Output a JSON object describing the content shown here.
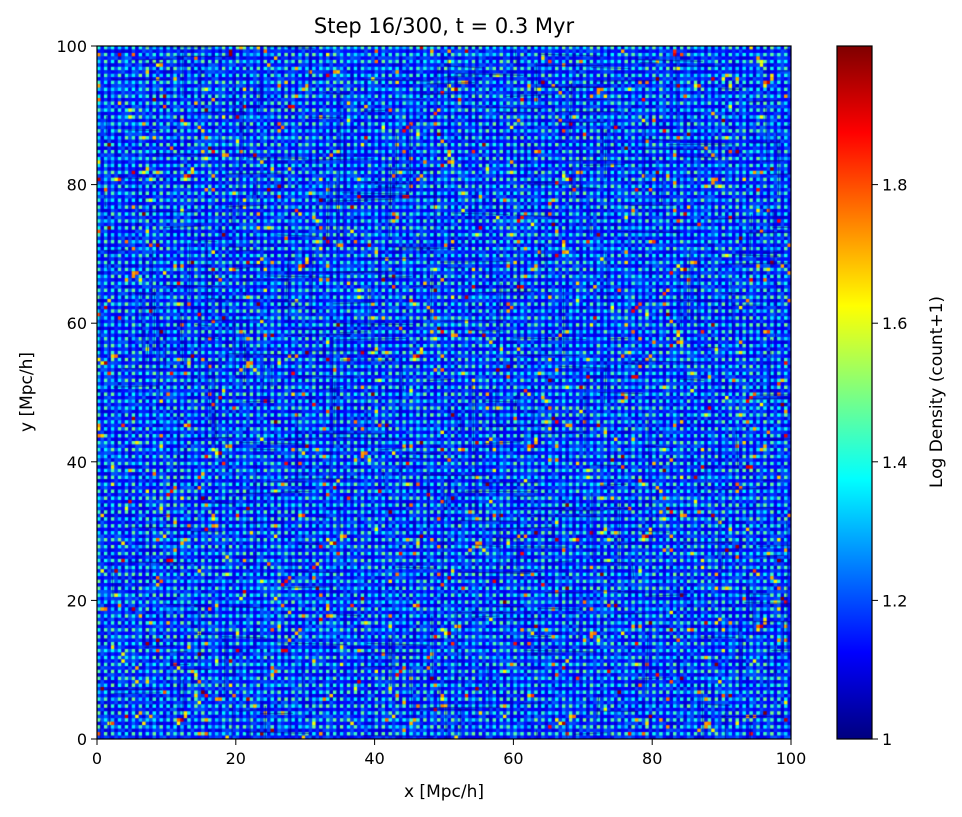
{
  "chart_data": {
    "type": "heatmap",
    "title": "Step 16/300, t = 0.3 Myr",
    "xlabel": "x [Mpc/h]",
    "ylabel": "y [Mpc/h]",
    "xlim": [
      0,
      100
    ],
    "ylim": [
      0,
      100
    ],
    "x_ticks": [
      0,
      20,
      40,
      60,
      80,
      100
    ],
    "y_ticks": [
      0,
      20,
      40,
      60,
      80,
      100
    ],
    "x_tick_labels": [
      "0",
      "20",
      "40",
      "60",
      "80",
      "100"
    ],
    "y_tick_labels": [
      "0",
      "20",
      "40",
      "60",
      "80",
      "100"
    ],
    "grid_resolution": 200,
    "colorbar": {
      "label": "Log Density (count+1)",
      "vmin": 1.0,
      "vmax": 2.0,
      "ticks": [
        1,
        1.2,
        1.4,
        1.6,
        1.8
      ],
      "tick_labels": [
        "1",
        "1.2",
        "1.4",
        "1.6",
        "1.8"
      ],
      "colormap": "jet",
      "colormap_stops": [
        "#00007f",
        "#0000ff",
        "#007fff",
        "#00ffff",
        "#7fff7f",
        "#ffff00",
        "#ff7f00",
        "#ff0000",
        "#7f0000"
      ]
    },
    "pattern": "dense lattice of low-density blue cells with scattered high-density specks across the full domain"
  }
}
